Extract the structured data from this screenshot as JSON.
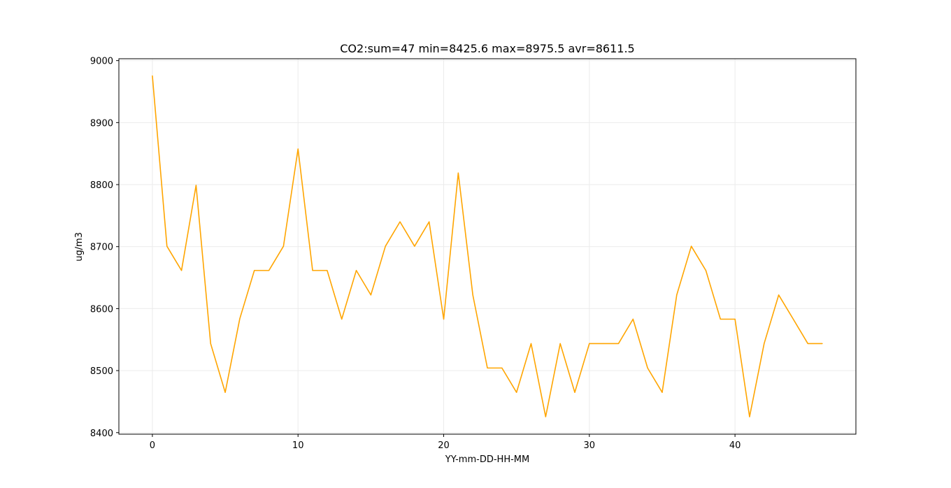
{
  "chart_data": {
    "type": "line",
    "title": "CO2:sum=47 min=8425.6 max=8975.5 avr=8611.5",
    "xlabel": "YY-mm-DD-HH-MM",
    "ylabel": "ug/m3",
    "xlim": [
      -2.3,
      48.3
    ],
    "ylim": [
      8397.5,
      9003.0
    ],
    "xticks": [
      0,
      10,
      20,
      30,
      40
    ],
    "yticks": [
      8400,
      8500,
      8600,
      8700,
      8800,
      8900,
      9000
    ],
    "grid": true,
    "line_color": "#FFA500",
    "series": [
      {
        "x": [
          0,
          1,
          2,
          3,
          4,
          5,
          6,
          7,
          8,
          9,
          10,
          11,
          12,
          13,
          14,
          15,
          16,
          17,
          18,
          19,
          20,
          21,
          22,
          23,
          24,
          25,
          26,
          27,
          28,
          29,
          30,
          31,
          32,
          33,
          34,
          35,
          36,
          37,
          38,
          39,
          40,
          41,
          42,
          43,
          44,
          45,
          46
        ],
        "values": [
          8975.5,
          8700.6,
          8661.5,
          8798.9,
          8543.6,
          8464.9,
          8583.6,
          8661.5,
          8661.5,
          8700.6,
          8857.5,
          8661.5,
          8661.5,
          8583.0,
          8661.5,
          8622.0,
          8700.6,
          8740.0,
          8700.6,
          8740.0,
          8583.0,
          8818.7,
          8622.0,
          8504.2,
          8504.2,
          8464.9,
          8543.6,
          8425.6,
          8543.6,
          8464.9,
          8543.6,
          8543.6,
          8543.6,
          8583.0,
          8504.2,
          8464.9,
          8622.0,
          8700.6,
          8661.5,
          8583.0,
          8583.0,
          8425.6,
          8543.6,
          8622.0,
          8583.0,
          8543.6,
          8543.6
        ]
      }
    ]
  }
}
